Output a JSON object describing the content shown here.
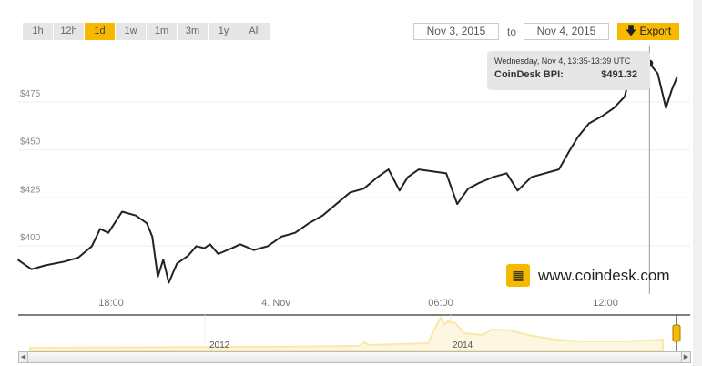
{
  "toolbar": {
    "ranges": [
      "1h",
      "12h",
      "1d",
      "1w",
      "1m",
      "3m",
      "1y",
      "All"
    ],
    "active_range": "1d",
    "from_date": "Nov 3, 2015",
    "to_label": "to",
    "to_date": "Nov 4, 2015",
    "export_label": "Export"
  },
  "tooltip": {
    "time": "Wednesday, Nov 4, 13:35-13:39 UTC",
    "series": "CoinDesk BPI:",
    "value": "$491.32"
  },
  "watermark": "www.coindesk.com",
  "navigator": {
    "labels": [
      "2012",
      "2014"
    ]
  },
  "colors": {
    "accent": "#f6b900",
    "line": "#222222",
    "navigator": "#fbe7a9"
  },
  "chart_data": {
    "type": "line",
    "title": "",
    "xlabel": "",
    "ylabel": "",
    "x_unit": "hours since Nov 3 00:00 UTC",
    "x_ticks": [
      {
        "value": 18,
        "label": "18:00"
      },
      {
        "value": 24,
        "label": "4. Nov"
      },
      {
        "value": 30,
        "label": "06:00"
      },
      {
        "value": 36,
        "label": "12:00"
      }
    ],
    "y_ticks": [
      {
        "value": 400,
        "label": "$400"
      },
      {
        "value": 425,
        "label": "$425"
      },
      {
        "value": 450,
        "label": "$450"
      },
      {
        "value": 475,
        "label": "$475"
      }
    ],
    "xlim": [
      14.6,
      38.8
    ],
    "ylim": [
      389,
      500
    ],
    "grid": true,
    "series": [
      {
        "name": "CoinDesk BPI",
        "x": [
          14.6,
          15.1,
          15.6,
          16.3,
          16.8,
          17.3,
          17.6,
          17.9,
          18.4,
          18.9,
          19.3,
          19.5,
          19.7,
          19.9,
          20.1,
          20.4,
          20.8,
          21.1,
          21.4,
          21.6,
          21.9,
          22.4,
          22.7,
          23.2,
          23.7,
          24.2,
          24.7,
          25.2,
          25.7,
          26.2,
          26.7,
          27.2,
          27.7,
          28.1,
          28.5,
          28.8,
          29.2,
          29.7,
          30.2,
          30.6,
          31.0,
          31.4,
          31.9,
          32.4,
          32.8,
          33.3,
          33.8,
          34.3,
          34.7,
          35.0,
          35.4,
          35.9,
          36.3,
          36.7,
          36.9,
          37.3,
          37.6,
          37.9,
          38.2,
          38.4,
          38.6
        ],
        "y": [
          389,
          384,
          386,
          388,
          390,
          396,
          405,
          403,
          414,
          412,
          408,
          401,
          380,
          389,
          377,
          387,
          391,
          396,
          395,
          397,
          392,
          395,
          397,
          394,
          396,
          401,
          403,
          408,
          412,
          418,
          424,
          426,
          432,
          436,
          425,
          432,
          436,
          435,
          434,
          418,
          426,
          429,
          432,
          434,
          425,
          432,
          434,
          436,
          446,
          453,
          460,
          464,
          468,
          474,
          486,
          490,
          491.3,
          486,
          468,
          477,
          484
        ]
      }
    ],
    "highlight": {
      "x": 37.6,
      "y": 491.32
    }
  }
}
